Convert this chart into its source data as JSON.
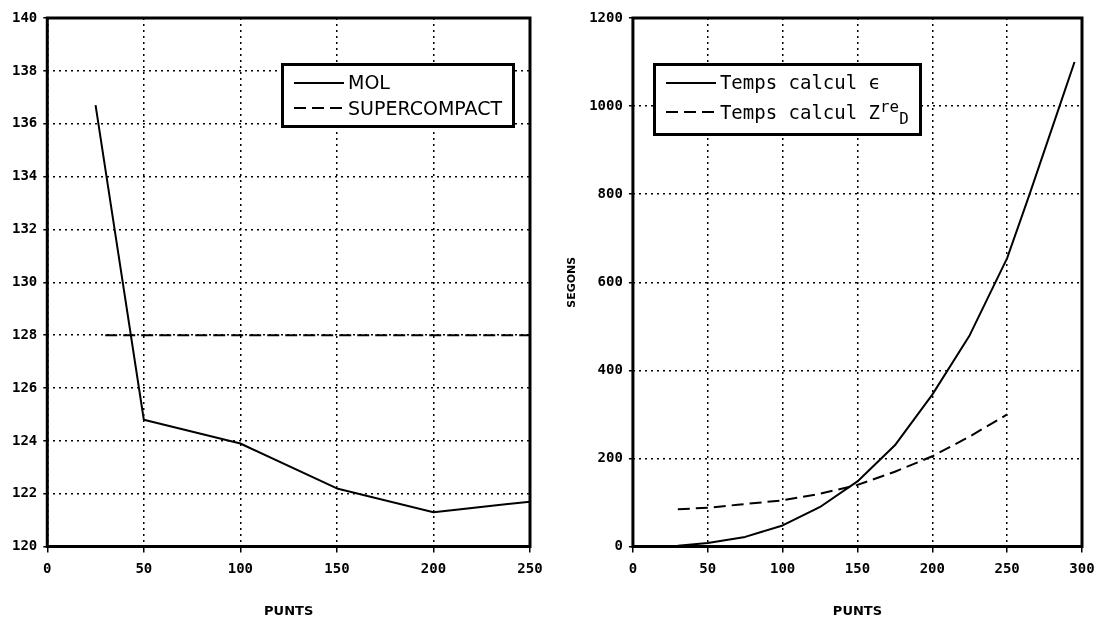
{
  "chart_data": [
    {
      "type": "line",
      "xlabel": "PUNTS",
      "xlim": [
        0,
        250
      ],
      "xticks": [
        0,
        50,
        100,
        150,
        200,
        250
      ],
      "ylim": [
        120,
        140
      ],
      "yticks": [
        120,
        122,
        124,
        126,
        128,
        130,
        132,
        134,
        136,
        138,
        140
      ],
      "grid": true,
      "legend": "top right",
      "marker": "none",
      "series": [
        {
          "name": "MOL",
          "color": "#000000",
          "line_style": "solid",
          "x": [
            25,
            50,
            100,
            150,
            200,
            250
          ],
          "values": [
            136.7,
            124.8,
            123.9,
            122.2,
            121.3,
            121.7
          ]
        },
        {
          "name": "SUPERCOMPACT",
          "color": "#000000",
          "line_style": "dashed",
          "x": [
            30,
            250
          ],
          "values": [
            128,
            128
          ]
        }
      ]
    },
    {
      "type": "line",
      "xlabel": "PUNTS",
      "ylabel": "SEGONS",
      "xlim": [
        0,
        300
      ],
      "xticks": [
        0,
        50,
        100,
        150,
        200,
        250,
        300
      ],
      "ylim": [
        0,
        1200
      ],
      "yticks": [
        0,
        200,
        400,
        600,
        800,
        1000,
        1200
      ],
      "grid": true,
      "legend": "top left",
      "marker": "none",
      "series": [
        {
          "name": "Temps calcul ϵ",
          "color": "#000000",
          "line_style": "solid",
          "x": [
            30,
            50,
            75,
            100,
            125,
            150,
            175,
            200,
            225,
            250,
            265,
            285,
            295
          ],
          "values": [
            2,
            8,
            22,
            48,
            90,
            148,
            230,
            345,
            480,
            655,
            800,
            1000,
            1100
          ]
        },
        {
          "name": "Temps calcul Z$^{re}$$_{D}$",
          "color": "#000000",
          "line_style": "dashed",
          "x": [
            30,
            50,
            70,
            100,
            125,
            150,
            175,
            200,
            225,
            250
          ],
          "values": [
            85,
            88,
            95,
            105,
            120,
            140,
            170,
            205,
            250,
            300
          ]
        }
      ]
    }
  ]
}
